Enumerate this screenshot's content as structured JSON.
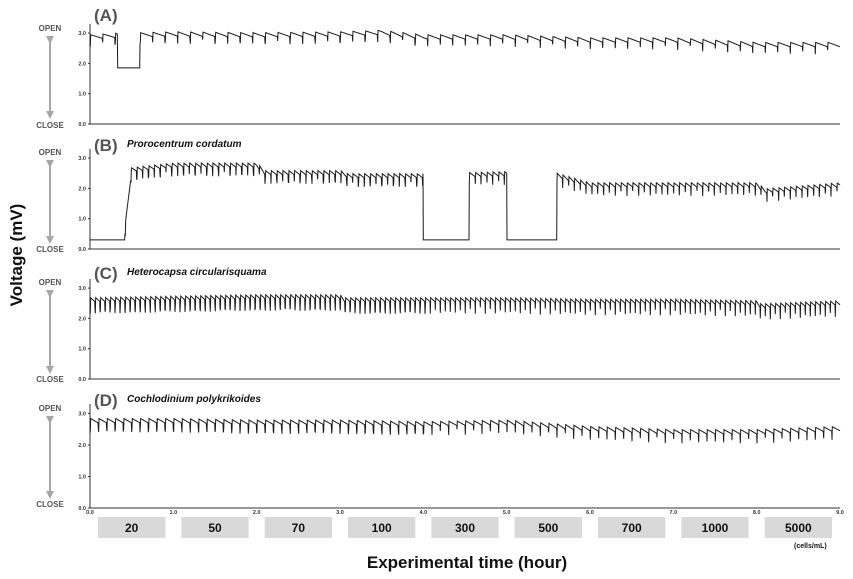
{
  "figure": {
    "ylabel": "Voltage (mV)",
    "xlabel": "Experimental time (hour)",
    "open_label": "OPEN",
    "close_label": "CLOSE",
    "unit_label": "(cells/mL)",
    "x_ticks": [
      "1.0",
      "2.0",
      "3.0",
      "4.0",
      "5.0",
      "6.0",
      "7.0",
      "8.0",
      "9.0"
    ],
    "concentrations": [
      "20",
      "50",
      "70",
      "100",
      "300",
      "500",
      "700",
      "1000",
      "5000"
    ],
    "colors": {
      "trace": "#1a1a1a",
      "axis": "#333333",
      "arrow": "#a6a6a6",
      "conc_box": "#d9d9d9"
    }
  },
  "chart_data": [
    {
      "type": "line",
      "panel": "(A)",
      "title": "",
      "xlabel": "Experimental time (hour)",
      "ylabel": "Voltage (mV)",
      "xlim": [
        0,
        9
      ],
      "ylim": [
        0,
        3.3
      ],
      "y_ticks": [
        "0.0",
        "1.0",
        "2.0",
        "3.0"
      ],
      "baseline": [
        [
          0,
          2.95
        ],
        [
          0.3,
          3.0
        ],
        [
          1.0,
          3.05
        ],
        [
          2.0,
          3.02
        ],
        [
          3.0,
          3.05
        ],
        [
          3.5,
          3.1
        ],
        [
          4.0,
          2.95
        ],
        [
          5.0,
          2.95
        ],
        [
          6.0,
          2.85
        ],
        [
          7.0,
          2.85
        ],
        [
          8.0,
          2.7
        ],
        [
          9.0,
          2.7
        ]
      ],
      "dropouts": [
        [
          0.33,
          0.6,
          1.85
        ]
      ],
      "spike_period": 0.15,
      "spike_depth": 0.4
    },
    {
      "type": "line",
      "panel": "(B)",
      "title": "Prorocentrum cordatum",
      "xlabel": "Experimental time (hour)",
      "ylabel": "Voltage (mV)",
      "xlim": [
        0,
        9
      ],
      "ylim": [
        0,
        3.3
      ],
      "y_ticks": [
        "0.0",
        "1.0",
        "2.0",
        "3.0"
      ],
      "baseline": [
        [
          0,
          0.3
        ],
        [
          0.4,
          0.3
        ],
        [
          0.5,
          2.7
        ],
        [
          1.0,
          2.85
        ],
        [
          2.0,
          2.85
        ],
        [
          2.1,
          2.6
        ],
        [
          3.0,
          2.6
        ],
        [
          3.1,
          2.5
        ],
        [
          4.0,
          2.5
        ],
        [
          5.5,
          2.6
        ],
        [
          6.0,
          2.2
        ],
        [
          7.0,
          2.2
        ],
        [
          8.0,
          2.2
        ],
        [
          8.1,
          2.0
        ],
        [
          9.0,
          2.2
        ]
      ],
      "dropouts": [
        [
          0.0,
          0.42,
          0.3
        ],
        [
          4.0,
          4.55,
          0.3
        ],
        [
          5.0,
          5.6,
          0.3
        ]
      ],
      "spike_period": 0.07,
      "spike_depth": 0.45
    },
    {
      "type": "line",
      "panel": "(C)",
      "title": "Heterocapsa circularisquama",
      "xlabel": "Experimental time (hour)",
      "ylabel": "Voltage (mV)",
      "xlim": [
        0,
        9
      ],
      "ylim": [
        0,
        3.3
      ],
      "y_ticks": [
        "0.0",
        "1.0",
        "2.0",
        "3.0"
      ],
      "baseline": [
        [
          0,
          2.7
        ],
        [
          1.0,
          2.75
        ],
        [
          2.0,
          2.8
        ],
        [
          3.0,
          2.8
        ],
        [
          3.05,
          2.7
        ],
        [
          4.0,
          2.7
        ],
        [
          5.0,
          2.7
        ],
        [
          6.0,
          2.65
        ],
        [
          7.0,
          2.65
        ],
        [
          8.0,
          2.6
        ],
        [
          8.05,
          2.5
        ],
        [
          9.0,
          2.6
        ]
      ],
      "dropouts": [],
      "spike_period": 0.06,
      "spike_depth": 0.55
    },
    {
      "type": "line",
      "panel": "(D)",
      "title": "Cochlodinium polykrikoides",
      "xlabel": "Experimental time (hour)",
      "ylabel": "Voltage (mV)",
      "xlim": [
        0,
        9
      ],
      "ylim": [
        0,
        3.3
      ],
      "y_ticks": [
        "0.0",
        "1.0",
        "2.0",
        "3.0"
      ],
      "baseline": [
        [
          0,
          2.85
        ],
        [
          1.0,
          2.85
        ],
        [
          2.0,
          2.8
        ],
        [
          3.0,
          2.8
        ],
        [
          4.0,
          2.75
        ],
        [
          5.0,
          2.8
        ],
        [
          6.0,
          2.6
        ],
        [
          7.0,
          2.5
        ],
        [
          8.0,
          2.5
        ],
        [
          9.0,
          2.6
        ]
      ],
      "dropouts": [],
      "spike_period": 0.1,
      "spike_depth": 0.45
    }
  ]
}
